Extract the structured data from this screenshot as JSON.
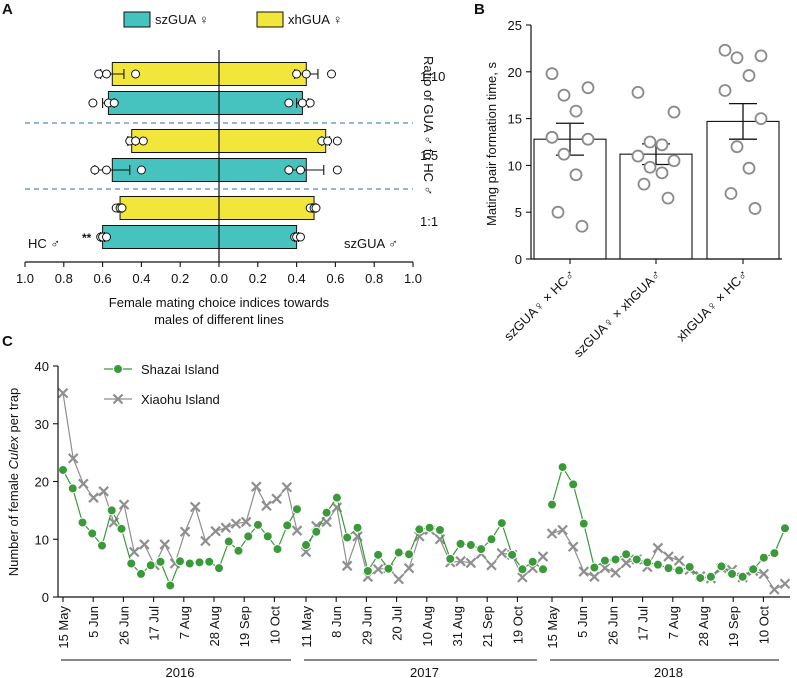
{
  "panels": {
    "a": "A",
    "b": "B",
    "c": "C"
  },
  "chart_data": [
    {
      "type": "bar",
      "id": "A",
      "orientation": "horizontal-diverging",
      "legend": [
        {
          "name": "szGUA ♀",
          "color": "#46c3bf"
        },
        {
          "name": "xhGUA ♀",
          "color": "#f2e63a"
        }
      ],
      "xlabel_lines": [
        "Female mating choice indices towards",
        "males of different lines"
      ],
      "x_ticks": [
        "1.0",
        "0.8",
        "0.6",
        "0.4",
        "0.2",
        "0.0",
        "0.2",
        "0.4",
        "0.6",
        "0.8",
        "1.0"
      ],
      "xlim": [
        -1,
        1
      ],
      "left_side_label": "HC ♂",
      "right_side_label": "szGUA ♂",
      "significance": "**",
      "side_ylabel": "Ratio of GUA ♂ to HC ♂",
      "groups": [
        {
          "ratio": "1:10",
          "bars": [
            {
              "female": "xhGUA ♀",
              "left": 0.55,
              "left_err": 0.06,
              "right": 0.45,
              "right_err": 0.06,
              "left_points": [
                0.62,
                0.58,
                0.43
              ],
              "right_points": [
                0.4,
                0.45,
                0.58
              ]
            },
            {
              "female": "szGUA ♀",
              "left": 0.57,
              "left_err": 0.03,
              "right": 0.43,
              "right_err": 0.03,
              "left_points": [
                0.65,
                0.57,
                0.54
              ],
              "right_points": [
                0.36,
                0.43,
                0.47
              ]
            }
          ]
        },
        {
          "ratio": "1:5",
          "bars": [
            {
              "female": "xhGUA ♀",
              "left": 0.45,
              "left_err": 0.02,
              "right": 0.55,
              "right_err": 0.02,
              "left_points": [
                0.46,
                0.43,
                0.39
              ],
              "right_points": [
                0.53,
                0.56,
                0.61
              ]
            },
            {
              "female": "szGUA ♀",
              "left": 0.55,
              "left_err": 0.09,
              "right": 0.45,
              "right_err": 0.09,
              "left_points": [
                0.64,
                0.58,
                0.4
              ],
              "right_points": [
                0.36,
                0.42,
                0.61
              ]
            }
          ]
        },
        {
          "ratio": "1:1",
          "bars": [
            {
              "female": "xhGUA ♀",
              "left": 0.51,
              "left_err": 0.01,
              "right": 0.49,
              "right_err": 0.01,
              "left_points": [
                0.53,
                0.51,
                0.5
              ],
              "right_points": [
                0.47,
                0.49,
                0.5
              ]
            },
            {
              "female": "szGUA ♀",
              "left": 0.6,
              "left_err": 0.01,
              "right": 0.4,
              "right_err": 0.01,
              "left_points": [
                0.61,
                0.6,
                0.58
              ],
              "right_points": [
                0.39,
                0.4,
                0.42
              ]
            }
          ]
        }
      ]
    },
    {
      "type": "bar",
      "id": "B",
      "ylabel": "Mating pair formation time, s",
      "ylim": [
        0,
        25
      ],
      "y_ticks": [
        "0",
        "5",
        "10",
        "15",
        "20",
        "25"
      ],
      "categories": [
        "szGUA♀ × HC♂",
        "szGUA♀ × xhGUA♂",
        "xhGUA♀ × HC♂"
      ],
      "values": [
        12.8,
        11.2,
        14.7
      ],
      "errors": [
        1.7,
        1.1,
        1.9
      ],
      "points": [
        [
          19.8,
          18.3,
          17.5,
          15.8,
          13.0,
          12.8,
          11.2,
          9.0,
          5.0,
          3.5
        ],
        [
          17.8,
          15.7,
          12.5,
          12.2,
          11.0,
          10.5,
          9.8,
          9.2,
          8.0,
          6.5
        ],
        [
          22.3,
          21.7,
          21.5,
          19.6,
          18.0,
          15.0,
          12.0,
          9.7,
          7.0,
          5.4
        ]
      ]
    },
    {
      "type": "line",
      "id": "C",
      "ylabel_parts": [
        "Number of female ",
        "Culex",
        " per trap"
      ],
      "ylim": [
        0,
        40
      ],
      "y_ticks": [
        "0",
        "10",
        "20",
        "30",
        "40"
      ],
      "years": [
        {
          "label": "2016",
          "ticks": [
            "15 May",
            "5 Jun",
            "26 Jun",
            "17 Jul",
            "7 Aug",
            "28 Aug",
            "19 Sep",
            "10 Oct"
          ]
        },
        {
          "label": "2017",
          "ticks": [
            "11 May",
            "8 Jun",
            "29 Jun",
            "20 Jul",
            "10 Aug",
            "31 Aug",
            "21 Sep",
            "19 Oct"
          ]
        },
        {
          "label": "2018",
          "ticks": [
            "15 May",
            "5 Jun",
            "26 Jun",
            "17 Jul",
            "7 Aug",
            "28 Aug",
            "19 Sep",
            "10 Oct"
          ]
        }
      ],
      "series": [
        {
          "name": "Shazai Island",
          "color": "#3a9a3a",
          "marker": "circle",
          "values": [
            [
              22.0,
              18.8,
              12.9,
              11.0,
              8.9,
              15.0,
              11.8,
              5.8,
              4.0,
              5.5,
              6.1,
              2.0,
              6.2,
              5.8,
              6.0,
              6.1,
              5.0,
              9.6,
              8.0,
              10.5,
              12.5,
              10.5,
              8.3,
              12.4,
              15.2
            ],
            [
              9.0,
              11.3,
              14.6,
              17.2,
              10.3,
              12.0,
              4.5,
              7.3,
              4.9,
              7.7,
              7.4,
              11.7,
              12.0,
              11.6,
              6.6,
              9.2,
              9.0,
              8.3,
              10.0,
              12.8,
              7.3,
              4.8,
              6.1,
              4.8
            ],
            [
              16.0,
              22.5,
              19.5,
              12.7,
              5.1,
              6.3,
              6.5,
              7.4,
              6.5,
              6.0,
              5.6,
              5.0,
              4.6,
              5.2,
              3.3,
              3.5,
              5.3,
              4.0,
              3.5,
              4.8,
              6.8,
              7.6,
              11.9
            ]
          ]
        },
        {
          "name": "Xiaohu Island",
          "color": "#8f8f8f",
          "marker": "cross",
          "values": [
            [
              35.3,
              24.0,
              19.6,
              17.2,
              18.3,
              12.9,
              16.0,
              7.8,
              9.1,
              5.5,
              9.1,
              5.8,
              11.3,
              15.6,
              9.7,
              11.4,
              12.0,
              12.7,
              13.0,
              19.1,
              15.8,
              17.0,
              19.0,
              11.5
            ],
            [
              7.8,
              12.3,
              13.0,
              15.5,
              5.4,
              10.5,
              3.5,
              4.8,
              5.0,
              3.1,
              5.0,
              10.5,
              11.6,
              10.0,
              6.0,
              6.2,
              5.9,
              7.5,
              5.5,
              7.6,
              7.3,
              3.4,
              5.0,
              7.0
            ],
            [
              11.0,
              11.6,
              8.7,
              4.4,
              3.5,
              5.0,
              4.2,
              5.9,
              6.5,
              5.2,
              8.5,
              7.0,
              6.3,
              4.7,
              3.6,
              3.2,
              5.0,
              4.7,
              3.4,
              4.5,
              4.0,
              1.3,
              2.3
            ]
          ]
        }
      ]
    }
  ]
}
